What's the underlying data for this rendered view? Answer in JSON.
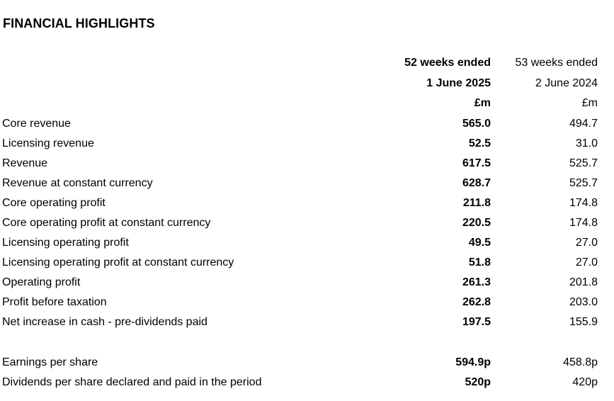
{
  "title": "FINANCIAL HIGHLIGHTS",
  "columns": {
    "current": {
      "line1": "52 weeks ended",
      "line2": "1 June 2025",
      "unit": "£m"
    },
    "prior": {
      "line1": "53 weeks ended",
      "line2": "2 June 2024",
      "unit": "£m"
    }
  },
  "rows": [
    {
      "label": "Core revenue",
      "current": "565.0",
      "prior": "494.7"
    },
    {
      "label": "Licensing revenue",
      "current": "52.5",
      "prior": "31.0"
    },
    {
      "label": "Revenue",
      "current": "617.5",
      "prior": "525.7"
    },
    {
      "label": "Revenue at constant currency",
      "current": "628.7",
      "prior": "525.7"
    },
    {
      "label": "Core operating profit",
      "current": "211.8",
      "prior": "174.8"
    },
    {
      "label": "Core operating profit at constant currency",
      "current": "220.5",
      "prior": "174.8"
    },
    {
      "label": "Licensing operating profit",
      "current": "49.5",
      "prior": "27.0"
    },
    {
      "label": "Licensing operating profit at constant currency",
      "current": "51.8",
      "prior": "27.0"
    },
    {
      "label": "Operating profit",
      "current": "261.3",
      "prior": "201.8"
    },
    {
      "label": "Profit before taxation",
      "current": "262.8",
      "prior": "203.0"
    },
    {
      "label": "Net increase in cash - pre-dividends paid",
      "current": "197.5",
      "prior": "155.9"
    }
  ],
  "per_share_rows": [
    {
      "label": "Earnings per share",
      "current": "594.9p",
      "prior": "458.8p"
    },
    {
      "label": "Dividends per share declared and paid in the period",
      "current": "520p",
      "prior": "420p"
    }
  ]
}
